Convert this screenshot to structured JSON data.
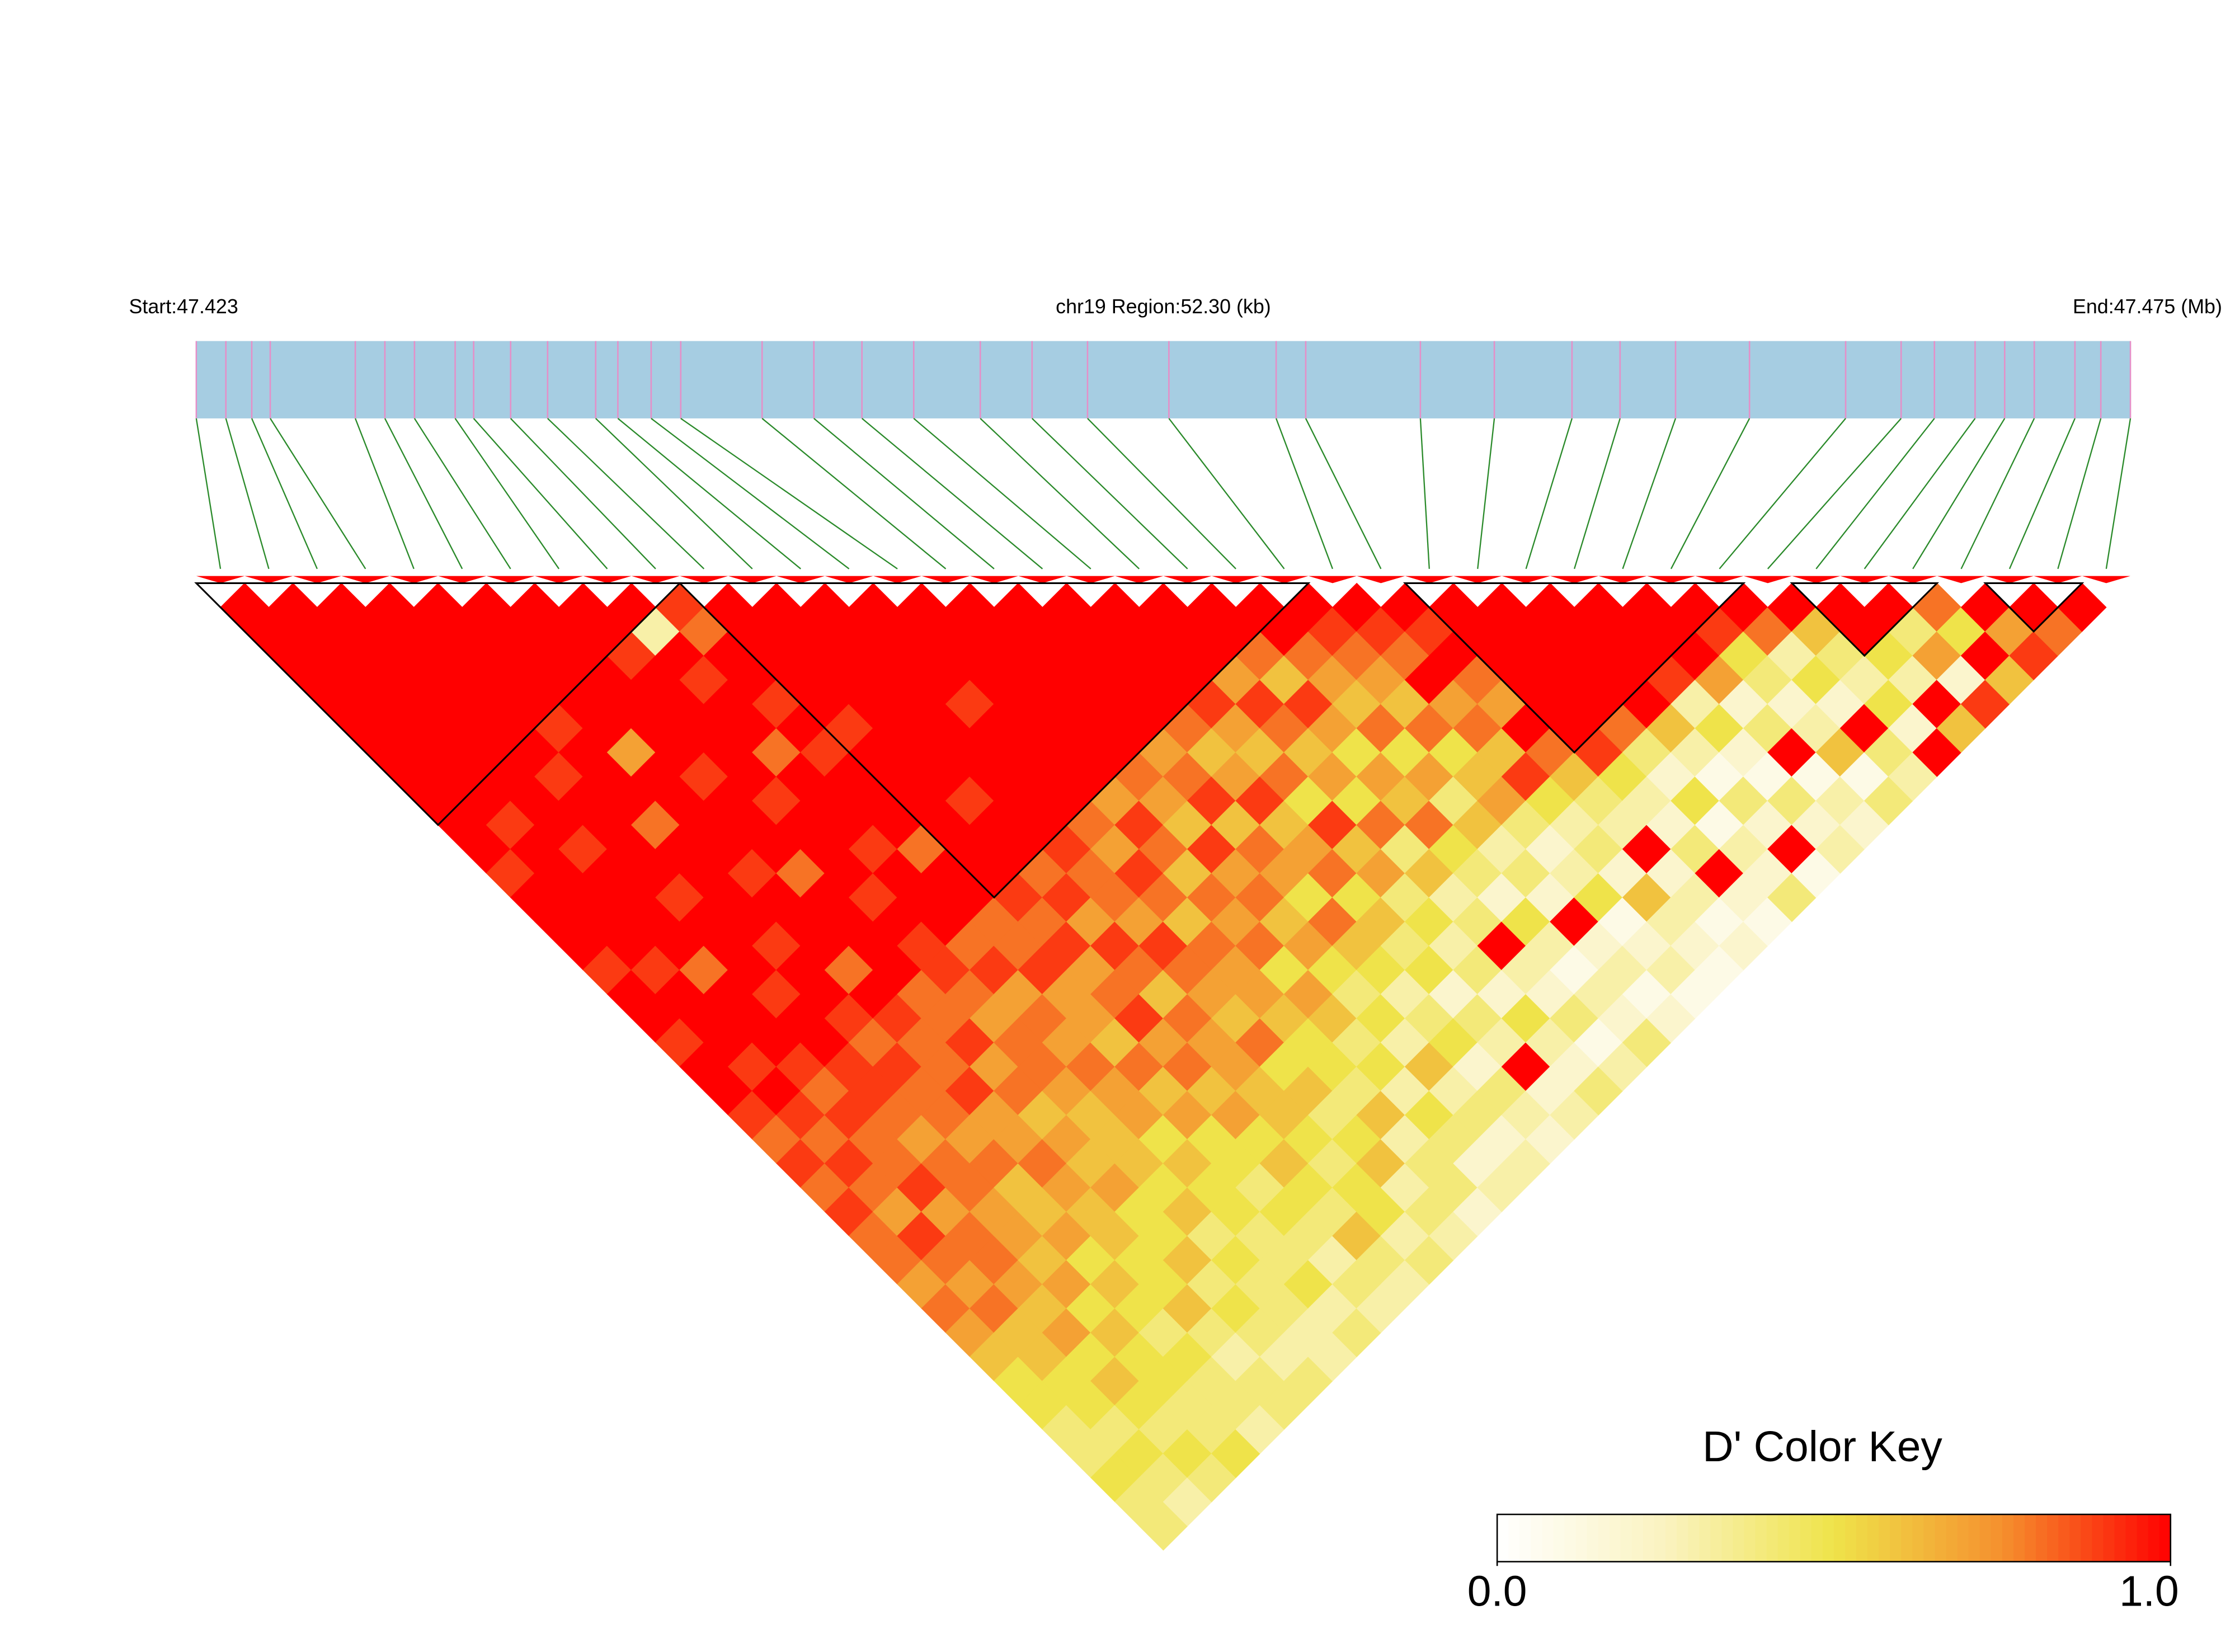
{
  "chart_data": {
    "type": "ld_heatmap",
    "start_label": "Start:47.423",
    "region_label": "chr19 Region:52.30 (kb)",
    "end_label": "End:47.475 (Mb)",
    "xlim": [
      47.423,
      47.4753
    ],
    "snp_positions": [
      47.423,
      47.4238,
      47.4245,
      47.425,
      47.4273,
      47.4281,
      47.4289,
      47.43,
      47.4305,
      47.4315,
      47.4325,
      47.4338,
      47.4344,
      47.4353,
      47.4361,
      47.4383,
      47.4397,
      47.441,
      47.4424,
      47.4442,
      47.4456,
      47.4471,
      47.4493,
      47.4522,
      47.453,
      47.4561,
      47.4581,
      47.4602,
      47.4615,
      47.463,
      47.465,
      47.4676,
      47.4691,
      47.47,
      47.4711,
      47.4719,
      47.4727,
      47.4738,
      47.4745,
      47.4753
    ],
    "d_prime": [
      [
        1,
        1,
        1,
        1,
        1,
        1,
        1,
        1,
        1,
        1,
        1,
        0.9,
        1,
        1,
        1,
        0.9,
        1,
        1,
        0.9,
        1,
        1,
        0.9,
        0.8,
        0.9,
        0.8,
        0.9,
        0.8,
        0.8,
        0.7,
        0.8,
        0.7,
        0.6,
        0.5,
        0.5,
        0.4,
        0.4,
        0.5,
        0.4,
        0.4
      ],
      [
        1,
        1,
        1,
        1,
        1,
        1,
        1,
        1,
        1,
        0.9,
        1,
        1,
        1,
        1,
        1,
        0.9,
        1,
        1,
        1,
        0.9,
        1,
        0.9,
        0.8,
        0.9,
        0.8,
        0.7,
        0.9,
        0.8,
        0.7,
        0.8,
        0.6,
        0.6,
        0.5,
        0.5,
        0.4,
        0.5,
        0.4,
        0.3
      ],
      [
        1,
        1,
        1,
        1,
        1,
        1,
        1,
        1,
        1,
        1,
        0.9,
        1,
        1,
        1,
        1,
        0.8,
        1,
        1,
        1,
        0.9,
        0.8,
        0.9,
        0.8,
        0.8,
        0.9,
        0.7,
        0.8,
        0.8,
        0.7,
        0.6,
        0.7,
        0.5,
        0.6,
        0.5,
        0.4,
        0.5,
        0.4
      ],
      [
        1,
        1,
        1,
        1,
        1,
        1,
        1,
        0.9,
        1,
        1,
        1,
        1,
        0.9,
        1,
        1,
        1,
        0.9,
        1,
        1,
        0.9,
        0.9,
        0.8,
        0.7,
        0.8,
        0.8,
        0.7,
        0.7,
        0.6,
        0.7,
        0.5,
        0.6,
        0.5,
        0.5,
        0.4,
        0.4,
        0.5
      ],
      [
        1,
        1,
        1,
        1,
        1,
        0.9,
        1,
        1,
        1,
        0.8,
        1,
        1,
        1,
        1,
        0.9,
        1,
        1,
        0.9,
        0.8,
        0.9,
        0.8,
        0.8,
        0.7,
        0.8,
        0.6,
        0.6,
        0.7,
        0.5,
        0.6,
        0.5,
        0.4,
        0.5,
        0.4,
        0.4,
        0.3
      ],
      [
        1,
        1,
        1,
        1,
        1,
        1,
        0.7,
        1,
        1,
        1,
        1,
        0.9,
        1,
        1,
        1,
        0.8,
        1,
        0.9,
        0.8,
        0.8,
        0.9,
        0.7,
        0.7,
        0.8,
        0.7,
        0.6,
        0.6,
        0.5,
        0.5,
        0.6,
        0.4,
        0.3,
        0.4,
        0.4
      ],
      [
        1,
        1,
        1,
        1,
        1,
        1,
        1,
        0.9,
        1,
        1,
        1,
        0.8,
        1,
        1,
        1,
        1,
        0.8,
        0.8,
        0.9,
        0.7,
        0.8,
        0.6,
        0.7,
        0.6,
        0.7,
        0.5,
        0.5,
        0.6,
        0.4,
        0.5,
        0.4,
        0.3,
        0.4
      ],
      [
        1,
        1,
        0.9,
        1,
        1,
        1,
        1,
        1,
        0.9,
        1,
        1,
        1,
        0.9,
        1,
        0.9,
        0.9,
        0.8,
        0.7,
        0.8,
        0.8,
        0.7,
        0.6,
        0.6,
        0.6,
        0.5,
        0.6,
        0.4,
        0.5,
        0.4,
        0.4,
        0.3,
        0.3
      ],
      [
        1,
        0.3,
        1,
        0.9,
        1,
        1,
        0.8,
        1,
        1,
        1,
        0.9,
        1,
        1,
        1,
        0.8,
        0.9,
        0.7,
        0.8,
        0.7,
        0.8,
        0.7,
        0.7,
        0.5,
        0.6,
        0.5,
        0.5,
        0.4,
        0.4,
        0.5,
        0.3,
        0.4
      ],
      [
        0.9,
        0.8,
        1,
        1,
        0.9,
        1,
        0.9,
        1,
        1,
        1,
        0.8,
        1,
        1,
        0.8,
        0.8,
        0.9,
        0.7,
        0.7,
        0.6,
        0.8,
        0.6,
        0.7,
        0.5,
        0.5,
        0.4,
        0.5,
        0.4,
        0.3,
        0.4,
        0.3
      ],
      [
        1,
        1,
        1,
        1,
        1,
        0.9,
        1,
        1,
        1,
        1,
        1,
        1,
        0.9,
        0.8,
        0.9,
        0.7,
        0.8,
        0.9,
        0.7,
        0.8,
        0.6,
        0.7,
        0.5,
        0.6,
        0.5,
        0.4,
        0.6,
        0.4,
        0.3
      ],
      [
        1,
        1,
        1,
        1,
        1,
        1,
        1,
        1,
        0.9,
        1,
        1,
        0.8,
        0.9,
        0.7,
        0.9,
        0.8,
        0.6,
        0.8,
        0.7,
        0.7,
        0.6,
        0.6,
        0.5,
        0.4,
        0.5,
        0.5,
        0.3,
        0.4
      ],
      [
        1,
        1,
        1,
        1,
        1,
        1,
        1,
        1,
        1,
        1,
        0.9,
        0.8,
        0.8,
        0.7,
        0.9,
        0.8,
        0.7,
        0.6,
        0.8,
        0.5,
        0.6,
        0.4,
        0.5,
        0.6,
        0.3,
        0.4,
        0.3
      ],
      [
        1,
        1,
        1,
        1,
        0.9,
        1,
        1,
        1,
        1,
        0.8,
        0.7,
        0.9,
        0.8,
        0.6,
        0.8,
        0.7,
        0.7,
        0.6,
        0.5,
        0.5,
        0.4,
        0.6,
        0.3,
        0.4,
        0.4,
        0.2
      ],
      [
        1,
        1,
        1,
        1,
        1,
        1,
        1,
        1,
        0.7,
        0.9,
        0.8,
        0.6,
        0.8,
        0.7,
        0.8,
        0.5,
        0.7,
        0.6,
        0.4,
        0.5,
        0.3,
        0.5,
        0.4,
        0.2,
        0.3
      ],
      [
        1,
        1,
        1,
        1,
        1,
        1,
        1,
        0.8,
        0.7,
        0.6,
        0.9,
        0.7,
        0.8,
        0.6,
        0.7,
        0.5,
        0.4,
        0.5,
        0.3,
        0.6,
        0.3,
        0.4,
        0.2,
        0.3
      ],
      [
        1,
        1,
        1,
        1,
        1,
        1,
        0.7,
        0.8,
        0.9,
        0.6,
        0.8,
        0.7,
        0.5,
        0.8,
        0.6,
        0.5,
        0.3,
        0.4,
        0.5,
        0.2,
        0.4,
        0.3,
        0.2
      ],
      [
        1,
        1,
        1,
        1,
        1,
        0.8,
        0.6,
        0.7,
        0.9,
        0.6,
        0.7,
        0.8,
        0.5,
        0.6,
        0.4,
        0.5,
        0.2,
        0.4,
        0.3,
        1,
        0.2,
        0.3
      ],
      [
        1,
        1,
        1,
        1,
        0.9,
        0.7,
        0.6,
        0.8,
        0.5,
        0.9,
        0.6,
        0.7,
        0.4,
        0.5,
        0.3,
        0.4,
        0.2,
        0.5,
        0.3,
        0.2,
        0.4
      ],
      [
        1,
        1,
        1,
        0.7,
        0.9,
        0.8,
        0.6,
        0.7,
        0.5,
        0.8,
        0.4,
        0.6,
        0.3,
        0.4,
        1,
        0.3,
        0.2,
        0.4,
        0.1,
        0.3
      ],
      [
        1,
        1,
        0.8,
        0.6,
        0.9,
        0.7,
        0.5,
        0.7,
        0.6,
        0.8,
        0.5,
        0.4,
        0.2,
        0.5,
        0.3,
        0.1,
        0.3,
        0.2,
        0.4
      ],
      [
        1,
        1,
        0.8,
        0.7,
        0.6,
        0.8,
        0.5,
        0.7,
        0.4,
        0.6,
        0.3,
        0.4,
        0.2,
        1,
        0.2,
        0.3,
        0.1,
        0.2
      ],
      [
        1,
        0.9,
        0.8,
        0.7,
        0.6,
        0.8,
        0.5,
        0.6,
        0.7,
        0.4,
        0.2,
        0.3,
        0.5,
        0.1,
        0.2,
        0.3,
        0.1
      ],
      [
        1,
        0.9,
        0.8,
        1,
        0.7,
        0.8,
        0.6,
        0.9,
        0.5,
        0.3,
        0.4,
        0.2,
        0.6,
        0.3,
        0.2,
        0.1
      ],
      [
        1,
        0.9,
        1,
        0.8,
        0.7,
        1,
        0.8,
        0.6,
        0.4,
        0.3,
        1,
        0.2,
        0.3,
        0.1,
        0.2
      ],
      [
        1,
        1,
        1,
        1,
        1,
        1,
        0.9,
        0.5,
        0.3,
        0.2,
        0.4,
        1,
        0.2,
        0.1
      ],
      [
        1,
        1,
        1,
        1,
        1,
        0.8,
        0.4,
        0.2,
        0.5,
        0.1,
        0.3,
        0.2,
        0.4
      ],
      [
        1,
        1,
        1,
        1,
        1,
        0.6,
        0.3,
        0.1,
        0.4,
        0.2,
        1,
        0.1
      ],
      [
        1,
        1,
        1,
        0.9,
        0.3,
        0.5,
        0.2,
        0.1,
        0.4,
        0.2,
        0.3
      ],
      [
        1,
        1,
        1,
        0.7,
        0.2,
        0.4,
        1,
        0.1,
        0.3,
        0.2
      ],
      [
        1,
        0.9,
        0.5,
        0.4,
        0.2,
        0.3,
        0.6,
        0.1,
        0.4
      ],
      [
        1,
        0.8,
        0.3,
        0.5,
        0.2,
        1,
        0.4,
        0.3
      ],
      [
        1,
        0.6,
        0.4,
        0.3,
        0.5,
        0.2,
        1
      ],
      [
        1,
        1,
        0.5,
        0.3,
        1,
        0.6
      ],
      [
        1,
        0.4,
        0.7,
        0.2,
        0.9
      ],
      [
        0.8,
        0.5,
        1,
        0.6
      ],
      [
        1,
        0.7,
        0.9
      ],
      [
        1,
        0.8
      ],
      [
        1
      ]
    ],
    "blocks": [
      [
        0,
        9
      ],
      [
        10,
        22
      ],
      [
        25,
        31
      ],
      [
        33,
        35
      ],
      [
        37,
        38
      ]
    ],
    "colors": [
      "#ffffff",
      "#faf3c0",
      "#efe34a",
      "#f5902e",
      "#ff0000"
    ],
    "colorkey_title": "D' Color Key",
    "colorkey_lim": [
      0,
      1
    ],
    "colorkey_ticks": [
      {
        "value": 0,
        "label": "0.0"
      },
      {
        "value": 1,
        "label": "1.0"
      }
    ]
  }
}
